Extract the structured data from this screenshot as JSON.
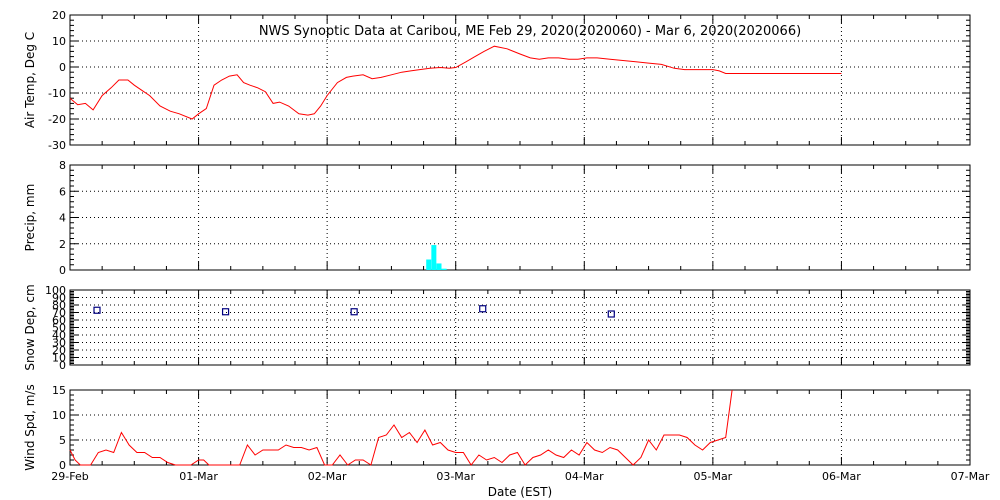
{
  "title": "NWS Synoptic Data at Caribou, ME   Feb 29, 2020(2020060) - Mar  6, 2020(2020066)",
  "xlabel": "Date (EST)",
  "x_ticks": [
    "29-Feb",
    "01-Mar",
    "02-Mar",
    "03-Mar",
    "04-Mar",
    "05-Mar",
    "06-Mar",
    "07-Mar"
  ],
  "colors": {
    "temp": "#ff0000",
    "precip": "#00ffff",
    "snow": "#000080",
    "wind": "#ff0000",
    "axis": "#000000"
  },
  "chart_data": [
    {
      "type": "line",
      "name": "air-temp",
      "ylabel": "Air Temp, Deg C",
      "ylim": [
        -30,
        20
      ],
      "y_ticks": [
        -30,
        -20,
        -10,
        0,
        10,
        20
      ],
      "xlim": [
        0,
        7
      ],
      "x_unit": "days since 29-Feb 00:00 EST",
      "grid": true,
      "x": [
        0.0,
        0.06,
        0.12,
        0.18,
        0.25,
        0.32,
        0.38,
        0.45,
        0.5,
        0.56,
        0.62,
        0.7,
        0.78,
        0.85,
        0.95,
        1.0,
        1.06,
        1.12,
        1.18,
        1.24,
        1.3,
        1.35,
        1.4,
        1.46,
        1.52,
        1.58,
        1.63,
        1.7,
        1.78,
        1.85,
        1.9,
        1.95,
        2.0,
        2.08,
        2.15,
        2.2,
        2.28,
        2.35,
        2.42,
        2.5,
        2.58,
        2.65,
        2.72,
        2.8,
        2.88,
        2.95,
        3.0,
        3.08,
        3.15,
        3.22,
        3.3,
        3.4,
        3.5,
        3.58,
        3.65,
        3.72,
        3.8,
        3.88,
        3.95,
        4.02,
        4.1,
        4.2,
        4.3,
        4.4,
        4.5,
        4.6,
        4.7,
        4.78,
        4.85,
        4.92,
        5.0,
        5.05,
        5.1,
        5.5,
        6.0
      ],
      "values": [
        -12,
        -14.5,
        -14,
        -16.5,
        -11,
        -8,
        -5,
        -5,
        -7,
        -9,
        -11,
        -15,
        -17,
        -18,
        -20,
        -18,
        -16,
        -7,
        -5,
        -3.5,
        -3,
        -6,
        -7,
        -8,
        -9.5,
        -14,
        -13.5,
        -15,
        -18,
        -18.5,
        -18,
        -15,
        -11,
        -6,
        -4,
        -3.5,
        -3,
        -4.5,
        -4,
        -3,
        -2,
        -1.5,
        -1,
        -0.5,
        -0.2,
        -0.5,
        -0.2,
        2,
        4,
        6,
        8,
        7,
        5,
        3.5,
        3,
        3.5,
        3.5,
        3,
        3,
        3.5,
        3.5,
        3,
        2.5,
        2,
        1.5,
        1,
        -0.5,
        -1,
        -1,
        -1,
        -1,
        -1.5,
        -2.5,
        -2.5,
        -2.5
      ]
    },
    {
      "type": "bar",
      "name": "precip",
      "ylabel": "Precip, mm",
      "ylim": [
        0,
        8
      ],
      "y_ticks": [
        0,
        2,
        4,
        6,
        8
      ],
      "xlim": [
        0,
        7
      ],
      "x_unit": "days since 29-Feb 00:00 EST",
      "grid": true,
      "x": [
        2.79,
        2.83,
        2.87,
        2.91
      ],
      "values": [
        0.8,
        1.9,
        0.5,
        0.1
      ]
    },
    {
      "type": "scatter",
      "name": "snow-depth",
      "ylabel": "Snow Dep, cm",
      "ylim": [
        0,
        100
      ],
      "y_ticks": [
        0,
        10,
        20,
        30,
        40,
        50,
        60,
        70,
        80,
        90,
        100
      ],
      "xlim": [
        0,
        7
      ],
      "x_unit": "days since 29-Feb 00:00 EST",
      "grid": true,
      "x": [
        0.21,
        1.21,
        2.21,
        3.21,
        4.21
      ],
      "values": [
        73,
        71,
        71,
        75,
        68
      ]
    },
    {
      "type": "line",
      "name": "wind-speed",
      "ylabel": "Wind Spd, m/s",
      "ylim": [
        0,
        15
      ],
      "y_ticks": [
        0,
        5,
        10,
        15
      ],
      "xlim": [
        0,
        7
      ],
      "x_unit": "days since 29-Feb 00:00 EST",
      "grid": true,
      "x": [
        0.0,
        0.04,
        0.08,
        0.12,
        0.16,
        0.22,
        0.28,
        0.34,
        0.4,
        0.46,
        0.52,
        0.58,
        0.64,
        0.7,
        0.76,
        0.82,
        0.88,
        0.94,
        1.0,
        1.04,
        1.08,
        1.14,
        1.2,
        1.26,
        1.32,
        1.38,
        1.44,
        1.5,
        1.56,
        1.62,
        1.68,
        1.74,
        1.8,
        1.86,
        1.92,
        1.98,
        2.04,
        2.1,
        2.16,
        2.22,
        2.28,
        2.34,
        2.4,
        2.46,
        2.52,
        2.58,
        2.64,
        2.7,
        2.76,
        2.82,
        2.88,
        2.94,
        3.0,
        3.06,
        3.12,
        3.18,
        3.24,
        3.3,
        3.36,
        3.42,
        3.48,
        3.54,
        3.6,
        3.66,
        3.72,
        3.78,
        3.84,
        3.9,
        3.96,
        4.02,
        4.08,
        4.14,
        4.2,
        4.26,
        4.32,
        4.38,
        4.44,
        4.5,
        4.56,
        4.62,
        4.68,
        4.74,
        4.8,
        4.86,
        4.92,
        4.98,
        5.04,
        5.1,
        5.15
      ],
      "values": [
        3,
        1,
        0,
        0,
        0,
        2.5,
        3,
        2.5,
        6.5,
        4,
        2.5,
        2.5,
        1.5,
        1.5,
        0.5,
        0,
        0,
        0,
        1,
        1,
        0,
        0,
        0,
        0,
        0,
        4,
        2,
        3,
        3,
        3,
        4,
        3.5,
        3.5,
        3,
        3.5,
        0,
        0,
        2,
        0,
        1,
        1,
        0,
        5.5,
        6,
        8,
        5.5,
        6.5,
        4.5,
        7,
        4,
        4.5,
        3,
        2.5,
        2.5,
        0,
        2,
        1,
        1.5,
        0.5,
        2,
        2.5,
        0,
        1.5,
        2,
        3,
        2,
        1.5,
        3,
        2,
        4.5,
        3,
        2.5,
        3.5,
        3,
        1.5,
        0,
        1.5,
        5,
        3,
        6,
        6,
        6,
        5.5,
        4,
        3,
        4.5,
        5,
        5.5,
        15
      ]
    }
  ]
}
